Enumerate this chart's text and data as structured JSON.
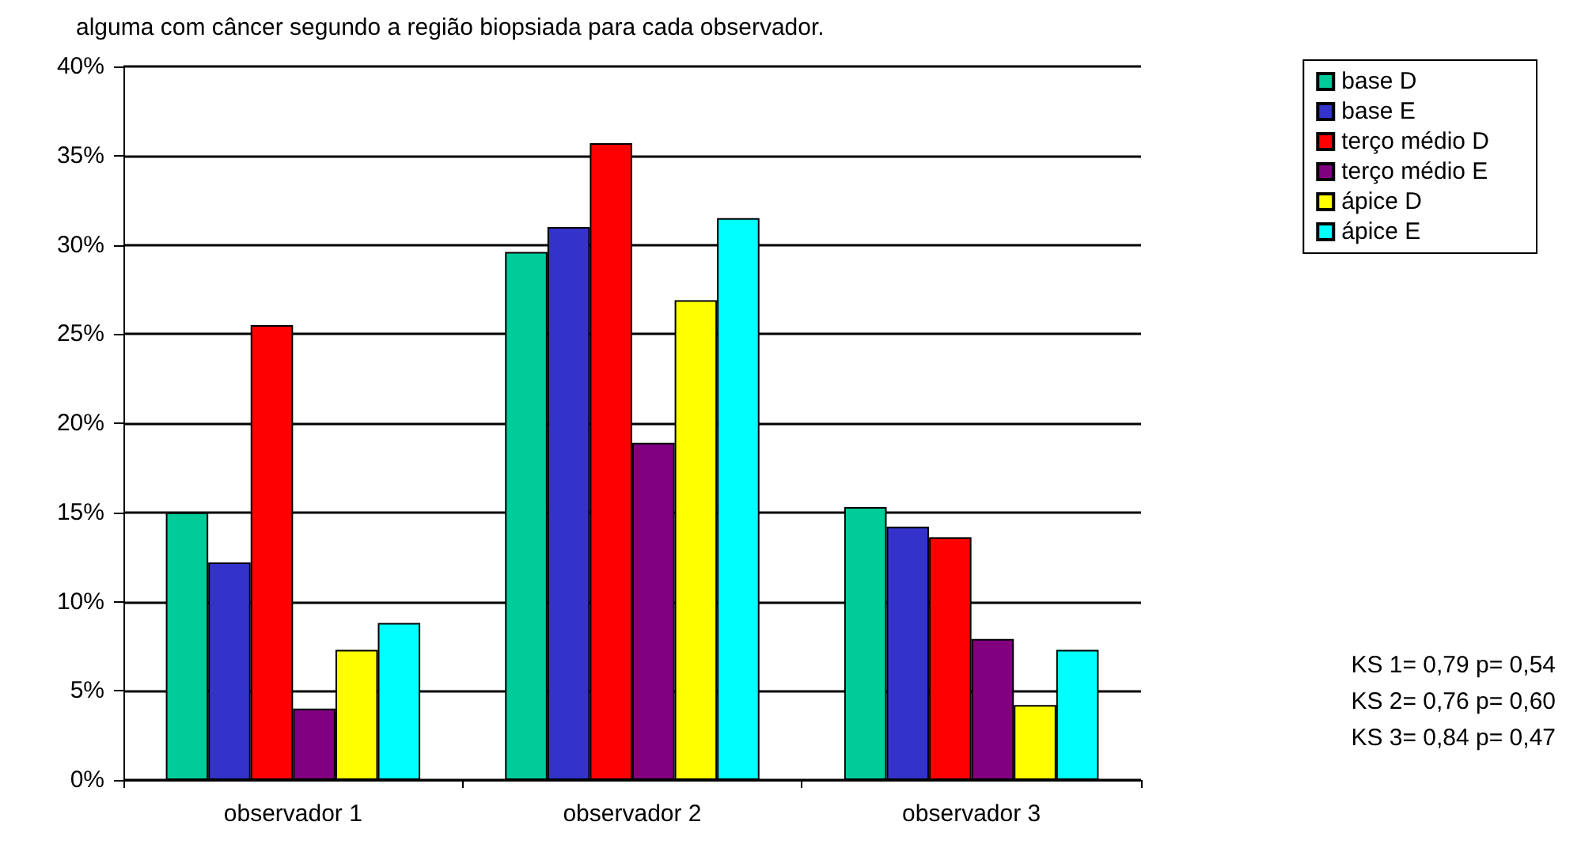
{
  "chart_data": {
    "type": "bar",
    "title": "alguma com câncer segundo a região biopsiada para cada observador.",
    "categories": [
      "observador 1",
      "observador 2",
      "observador 3"
    ],
    "series": [
      {
        "name": "base D",
        "color": "#00cc99",
        "values": [
          15.0,
          29.6,
          15.3
        ]
      },
      {
        "name": "base E",
        "color": "#3333cc",
        "values": [
          12.2,
          31.0,
          14.2
        ]
      },
      {
        "name": "terço médio D",
        "color": "#ff0000",
        "values": [
          25.5,
          35.7,
          13.6
        ]
      },
      {
        "name": "terço médio E",
        "color": "#800080",
        "values": [
          4.0,
          18.9,
          7.9
        ]
      },
      {
        "name": "ápice D",
        "color": "#ffff00",
        "values": [
          7.3,
          26.9,
          4.2
        ]
      },
      {
        "name": "ápice E",
        "color": "#00ffff",
        "values": [
          8.8,
          31.5,
          7.3
        ]
      }
    ],
    "ylim": [
      0,
      40
    ],
    "yticks": [
      {
        "value": 0,
        "label": "0%"
      },
      {
        "value": 5,
        "label": "5%"
      },
      {
        "value": 10,
        "label": "10%"
      },
      {
        "value": 15,
        "label": "15%"
      },
      {
        "value": 20,
        "label": "20%"
      },
      {
        "value": 25,
        "label": "25%"
      },
      {
        "value": 30,
        "label": "30%"
      },
      {
        "value": 35,
        "label": "35%"
      },
      {
        "value": 40,
        "label": "40%"
      }
    ],
    "grid": "y",
    "legend": "top right",
    "annotations": [
      "KS 1= 0,79 p= 0,54",
      "KS 2= 0,76 p= 0,60",
      "KS 3= 0,84 p= 0,47"
    ]
  }
}
